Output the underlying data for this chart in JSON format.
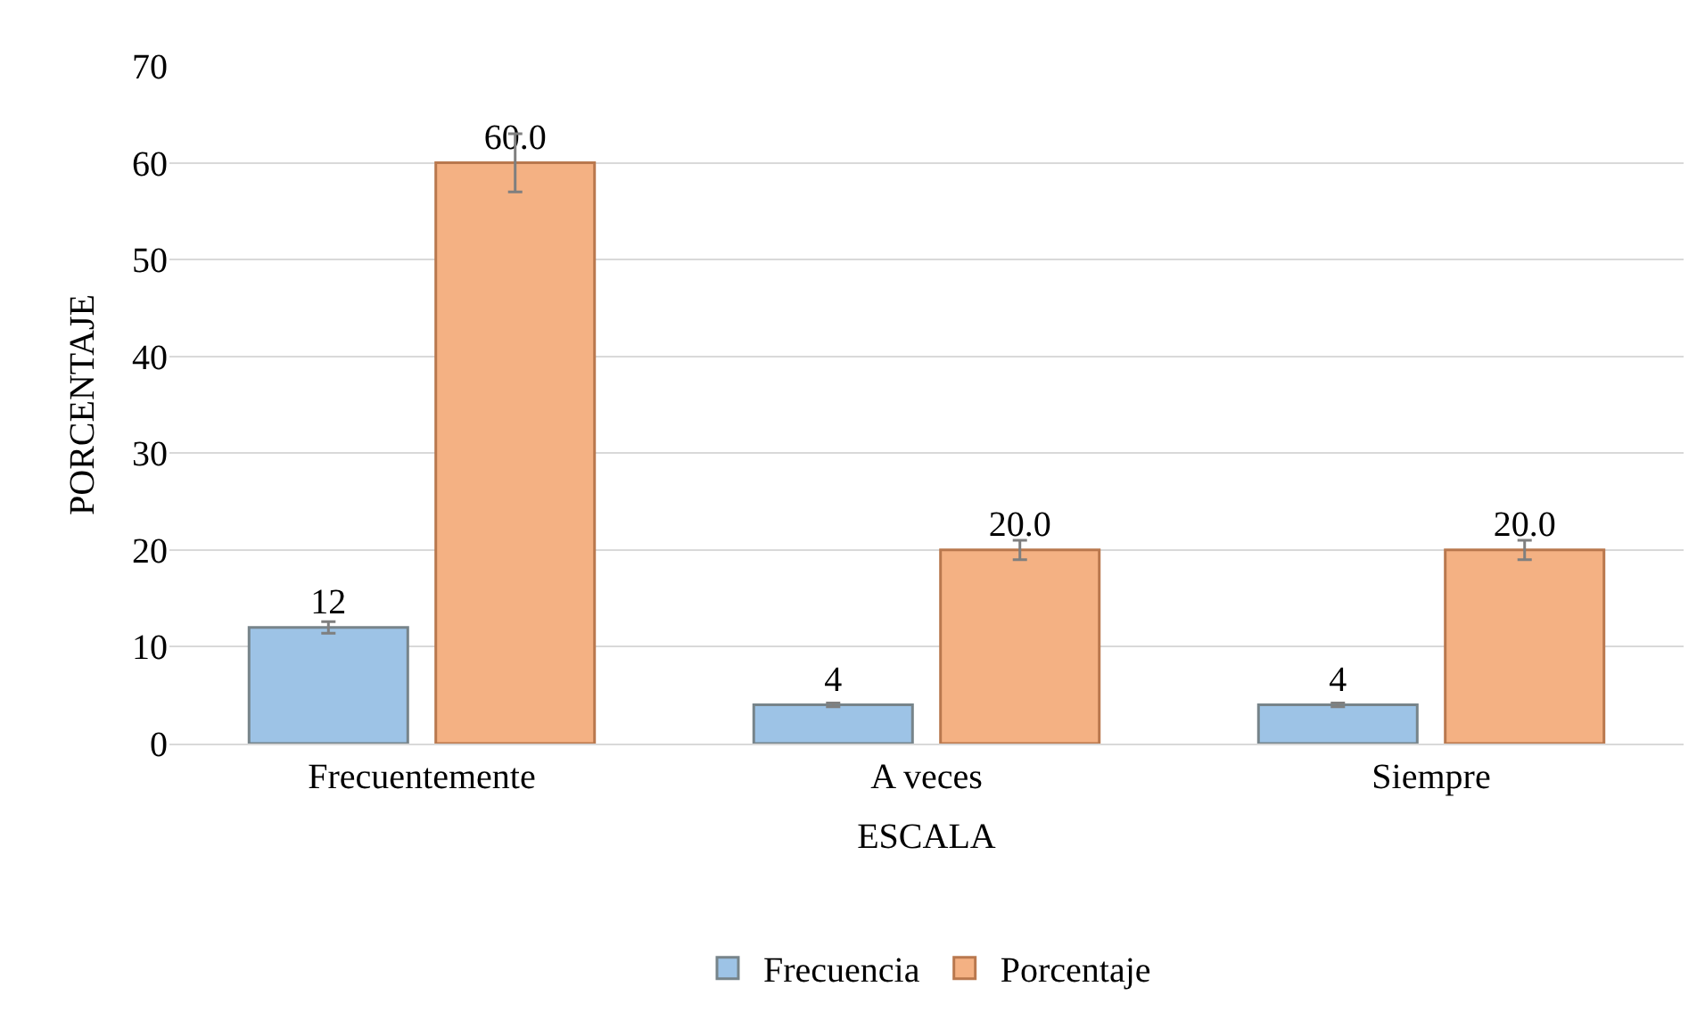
{
  "chart_data": {
    "type": "bar",
    "xlabel": "ESCALA",
    "ylabel": "PORCENTAJE",
    "categories": [
      "Frecuentemente",
      "A veces",
      "Siempre"
    ],
    "series": [
      {
        "name": "Frecuencia",
        "color": "#9dc3e6",
        "values": [
          12,
          4,
          4
        ],
        "errors": [
          0.6,
          0.2,
          0.2
        ],
        "value_labels": [
          "12",
          "4",
          "4"
        ]
      },
      {
        "name": "Porcentaje",
        "color": "#f4b183",
        "values": [
          60,
          20,
          20
        ],
        "errors": [
          3,
          1,
          1
        ],
        "value_labels": [
          "60.0",
          "20.0",
          "20.0"
        ]
      }
    ],
    "ylim": [
      0,
      70
    ],
    "yticks": [
      0,
      10,
      20,
      30,
      40,
      50,
      60,
      70
    ],
    "grid": "y",
    "legend": "bottom"
  }
}
